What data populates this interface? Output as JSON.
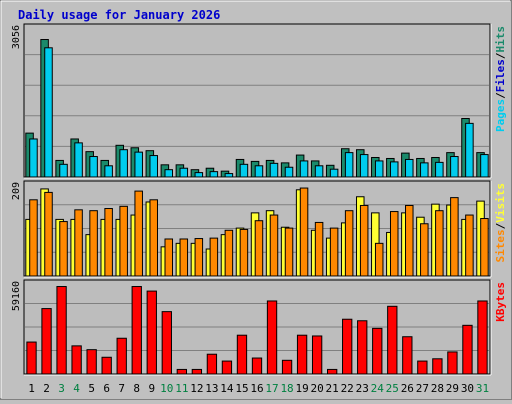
{
  "title": "Daily usage for January 2026",
  "colors": {
    "background": "#c0c0c0",
    "title": "#0000cc",
    "pages": "#1b8a6b",
    "files": "#00ccee",
    "hits": "#1b8a6b",
    "visits": "#ffff33",
    "sites": "#ff8800",
    "kbytes": "#ff0000",
    "weekend_label": "#008040",
    "weekday_label": "#000000"
  },
  "chart_data": [
    {
      "type": "bar",
      "panel": "hits",
      "categories": [
        "1",
        "2",
        "3",
        "4",
        "5",
        "6",
        "7",
        "8",
        "9",
        "10",
        "11",
        "12",
        "13",
        "14",
        "15",
        "16",
        "17",
        "18",
        "19",
        "20",
        "21",
        "22",
        "23",
        "24",
        "25",
        "26",
        "27",
        "28",
        "29",
        "30",
        "31"
      ],
      "weekend_days": [
        "3",
        "4",
        "10",
        "11",
        "17",
        "18",
        "24",
        "25",
        "31"
      ],
      "ymax_label": "3056",
      "ylim": [
        0,
        3056
      ],
      "series": [
        {
          "name": "Pages",
          "values": [
            900,
            2820,
            340,
            780,
            520,
            340,
            650,
            600,
            540,
            250,
            250,
            150,
            180,
            120,
            360,
            320,
            340,
            290,
            450,
            330,
            240,
            580,
            560,
            400,
            380,
            490,
            380,
            400,
            500,
            1200,
            500
          ]
        },
        {
          "name": "Files",
          "values": [
            780,
            2650,
            260,
            700,
            420,
            230,
            560,
            510,
            440,
            150,
            180,
            90,
            110,
            70,
            260,
            230,
            280,
            200,
            330,
            230,
            160,
            500,
            460,
            330,
            310,
            360,
            290,
            300,
            420,
            1100,
            460
          ]
        }
      ],
      "axis_label_parts": [
        "Pages",
        "Files",
        "Hits"
      ]
    },
    {
      "type": "bar",
      "panel": "visits",
      "categories": [
        "1",
        "2",
        "3",
        "4",
        "5",
        "6",
        "7",
        "8",
        "9",
        "10",
        "11",
        "12",
        "13",
        "14",
        "15",
        "16",
        "17",
        "18",
        "19",
        "20",
        "21",
        "22",
        "23",
        "24",
        "25",
        "26",
        "27",
        "28",
        "29",
        "30",
        "31"
      ],
      "ymax_label": "209",
      "ylim": [
        0,
        209
      ],
      "series": [
        {
          "name": "Visits",
          "values": [
            130,
            200,
            130,
            130,
            95,
            130,
            130,
            140,
            170,
            67,
            75,
            75,
            62,
            95,
            110,
            145,
            150,
            112,
            198,
            105,
            87,
            122,
            182,
            145,
            100,
            145,
            135,
            165,
            163,
            130,
            172
          ]
        },
        {
          "name": "Sites",
          "values": [
            175,
            192,
            125,
            152,
            150,
            155,
            160,
            195,
            175,
            85,
            85,
            86,
            87,
            105,
            107,
            127,
            140,
            110,
            202,
            123,
            110,
            150,
            162,
            75,
            148,
            162,
            120,
            150,
            180,
            140,
            132
          ]
        }
      ],
      "axis_label_parts": [
        "Sites",
        "Visits"
      ]
    },
    {
      "type": "bar",
      "panel": "kbytes",
      "categories": [
        "1",
        "2",
        "3",
        "4",
        "5",
        "6",
        "7",
        "8",
        "9",
        "10",
        "11",
        "12",
        "13",
        "14",
        "15",
        "16",
        "17",
        "18",
        "19",
        "20",
        "21",
        "22",
        "23",
        "24",
        "25",
        "26",
        "27",
        "28",
        "29",
        "30",
        "31"
      ],
      "ymax_label": "59160",
      "ylim": [
        0,
        59160
      ],
      "series": [
        {
          "name": "KBytes",
          "values": [
            21000,
            43000,
            57500,
            18500,
            16000,
            11000,
            23500,
            57500,
            54500,
            41000,
            3000,
            3000,
            13000,
            8500,
            25500,
            10500,
            48000,
            9000,
            25500,
            25000,
            3000,
            36000,
            35000,
            30000,
            44500,
            24500,
            8500,
            10000,
            14500,
            32000,
            48000
          ]
        }
      ],
      "axis_label_parts": [
        "KBytes"
      ]
    }
  ]
}
